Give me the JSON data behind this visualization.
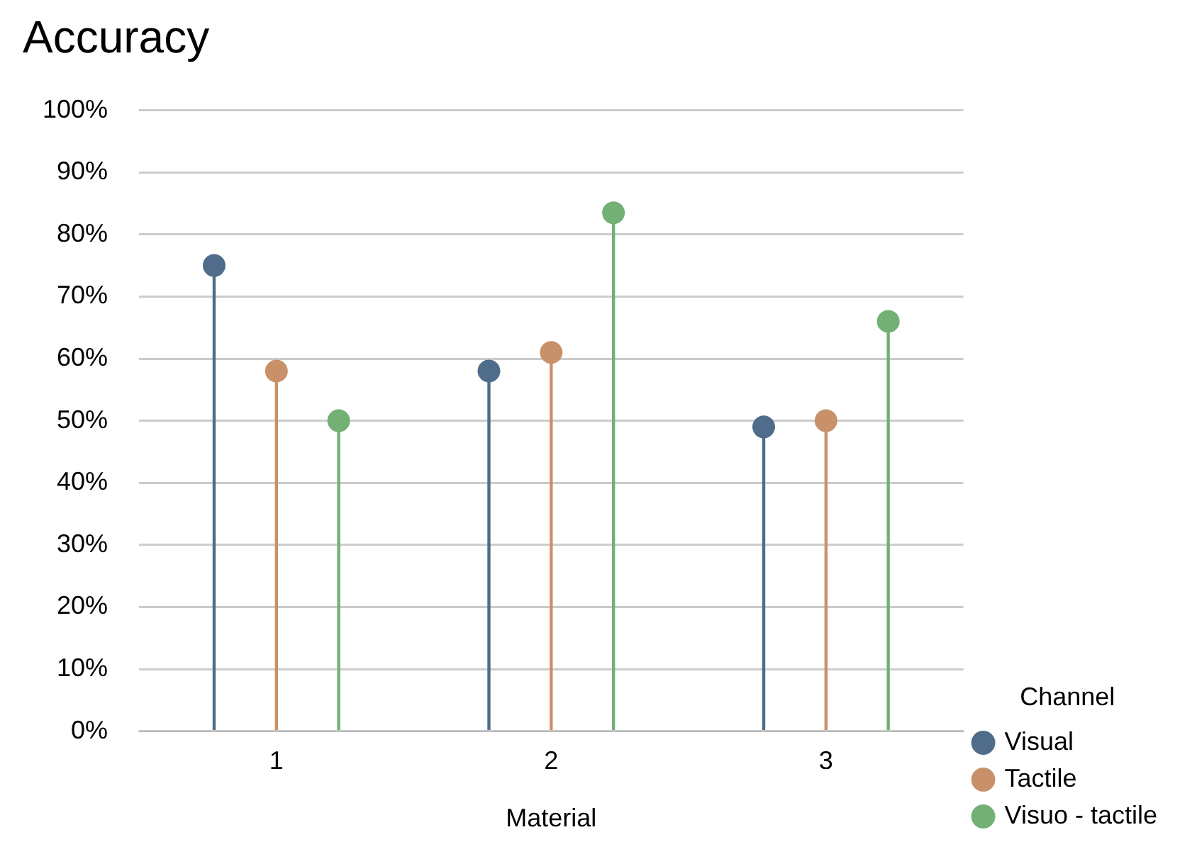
{
  "chart_data": {
    "type": "lollipop",
    "title": "Accuracy",
    "xlabel": "Material",
    "legend_title": "Channel",
    "categories": [
      "1",
      "2",
      "3"
    ],
    "series": [
      {
        "name": "Visual",
        "color": "#4f6d8a",
        "values": [
          75,
          58,
          49
        ]
      },
      {
        "name": "Tactile",
        "color": "#c9916a",
        "values": [
          58,
          61,
          50
        ]
      },
      {
        "name": "Visuo - tactile",
        "color": "#72b074",
        "values": [
          50,
          83.5,
          66
        ]
      }
    ],
    "ylim": [
      0,
      100
    ],
    "yticks": [
      {
        "value": 0,
        "label": "0%"
      },
      {
        "value": 10,
        "label": "10%"
      },
      {
        "value": 20,
        "label": "20%"
      },
      {
        "value": 30,
        "label": "30%"
      },
      {
        "value": 40,
        "label": "40%"
      },
      {
        "value": 50,
        "label": "50%"
      },
      {
        "value": 60,
        "label": "60%"
      },
      {
        "value": 70,
        "label": "70%"
      },
      {
        "value": 80,
        "label": "80%"
      },
      {
        "value": 90,
        "label": "90%"
      },
      {
        "value": 100,
        "label": "100%"
      }
    ],
    "grid": "y",
    "legend": "bottom right",
    "marker": "circle"
  }
}
